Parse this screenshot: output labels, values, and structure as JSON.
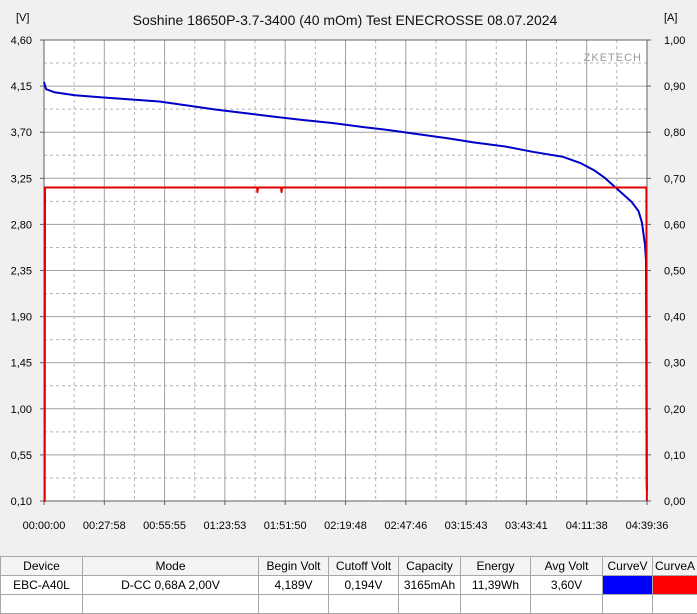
{
  "chart_data": {
    "type": "line",
    "title": "Soshine 18650P-3.7-3400 (40 mOm) Test ENECROSSE 08.07.2024",
    "watermark": "ZKETECH",
    "left_unit": "[V]",
    "right_unit": "[A]",
    "y_left_ticks": [
      "4,60",
      "4,15",
      "3,70",
      "3,25",
      "2,80",
      "2,35",
      "1,90",
      "1,45",
      "1,00",
      "0,55",
      "0,10"
    ],
    "y_right_ticks": [
      "1,00",
      "0,90",
      "0,80",
      "0,70",
      "0,60",
      "0,50",
      "0,40",
      "0,30",
      "0,20",
      "0,10",
      "0,00"
    ],
    "x_ticks": [
      "00:00:00",
      "00:27:58",
      "00:55:55",
      "01:23:53",
      "01:51:50",
      "02:19:48",
      "02:47:46",
      "03:15:43",
      "03:43:41",
      "04:11:38",
      "04:39:36"
    ],
    "ylim_left": [
      0.1,
      4.6
    ],
    "ylim_right": [
      0.0,
      1.0
    ],
    "xlim_seconds": [
      0,
      16776
    ],
    "grid": true,
    "series": [
      {
        "axis": "left",
        "color": "#0000c8",
        "points": [
          [
            0,
            4.19
          ],
          [
            60,
            4.12
          ],
          [
            300,
            4.09
          ],
          [
            900,
            4.06
          ],
          [
            1678,
            4.04
          ],
          [
            2500,
            4.02
          ],
          [
            3355,
            4.0
          ],
          [
            4200,
            3.96
          ],
          [
            5033,
            3.92
          ],
          [
            6000,
            3.88
          ],
          [
            6710,
            3.85
          ],
          [
            7500,
            3.82
          ],
          [
            8388,
            3.79
          ],
          [
            9300,
            3.75
          ],
          [
            10066,
            3.72
          ],
          [
            10900,
            3.68
          ],
          [
            11743,
            3.64
          ],
          [
            12500,
            3.6
          ],
          [
            13421,
            3.56
          ],
          [
            14200,
            3.51
          ],
          [
            15099,
            3.46
          ],
          [
            15600,
            3.4
          ],
          [
            16000,
            3.33
          ],
          [
            16300,
            3.26
          ],
          [
            16600,
            3.17
          ],
          [
            16800,
            3.11
          ],
          [
            17100,
            3.02
          ],
          [
            17300,
            2.93
          ],
          [
            17400,
            2.82
          ],
          [
            17490,
            2.6
          ],
          [
            17520,
            2.45
          ],
          [
            17540,
            0.3
          ],
          [
            17545,
            0.2
          ]
        ]
      },
      {
        "axis": "right",
        "color": "#e00000",
        "points": [
          [
            0,
            0.0
          ],
          [
            20,
            0.0
          ],
          [
            30,
            0.68
          ],
          [
            6200,
            0.68
          ],
          [
            6210,
            0.67
          ],
          [
            6230,
            0.68
          ],
          [
            6900,
            0.68
          ],
          [
            6910,
            0.67
          ],
          [
            6930,
            0.68
          ],
          [
            17530,
            0.68
          ],
          [
            17545,
            0.0
          ]
        ]
      }
    ]
  },
  "table": {
    "headers": [
      "Device",
      "Mode",
      "Begin Volt",
      "Cutoff Volt",
      "Capacity",
      "Energy",
      "Avg Volt",
      "CurveV",
      "CurveA"
    ],
    "row": [
      "EBC-A40L",
      "D-CC  0,68A  2,00V",
      "4,189V",
      "0,194V",
      "3165mAh",
      "11,39Wh",
      "3,60V",
      "",
      ""
    ],
    "curve_colors": [
      "#0000ff",
      "#ff0000"
    ]
  }
}
